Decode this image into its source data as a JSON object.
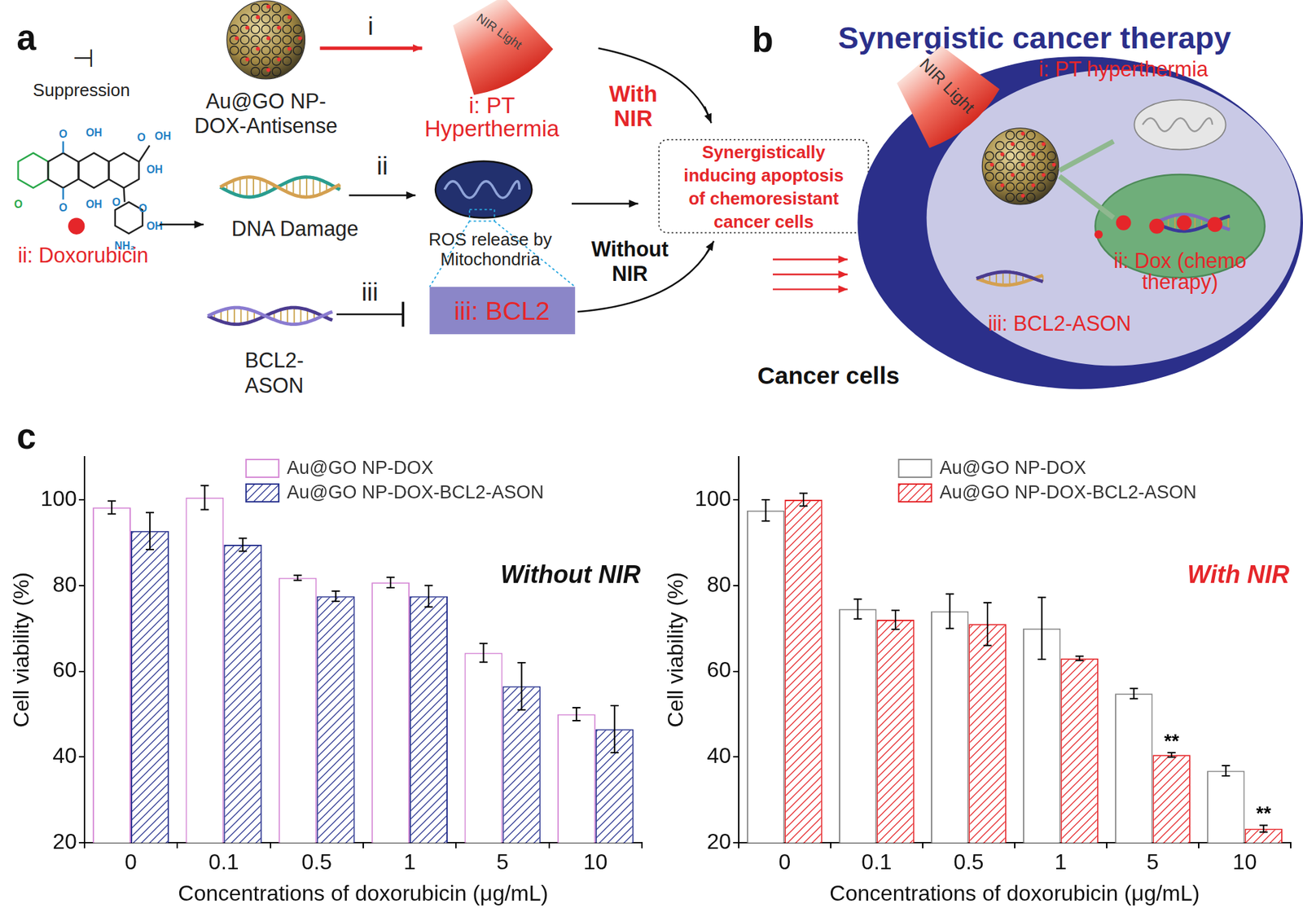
{
  "chart_data": [
    {
      "type": "bar",
      "title": "Without NIR",
      "x_label": "Concentrations of doxorubicin (μg/mL)",
      "y_label": "Cell viability (%)",
      "categories": [
        "0",
        "0.1",
        "0.5",
        "1",
        "5",
        "10"
      ],
      "series": [
        {
          "name": "Au@GO NP-DOX",
          "color": "#d68ad6",
          "values": [
            98.2,
            100.5,
            81.8,
            80.7,
            64.3,
            50.0
          ],
          "errors": [
            1.5,
            2.8,
            0.6,
            1.2,
            2.2,
            1.5
          ]
        },
        {
          "name": "Au@GO NP-DOX-BCL2-ASON",
          "color": "#2b3590",
          "values": [
            92.7,
            89.5,
            77.5,
            77.5,
            56.5,
            46.5
          ],
          "errors": [
            4.3,
            1.5,
            1.2,
            2.5,
            5.5,
            5.5
          ]
        }
      ],
      "ylim": [
        20,
        110
      ],
      "yticks": [
        20,
        40,
        60,
        80,
        100
      ],
      "grid": false,
      "legend": "upper left"
    },
    {
      "type": "bar",
      "title": "With NIR",
      "x_label": "Concentrations of doxorubicin (μg/mL)",
      "y_label": "Cell viability (%)",
      "categories": [
        "0",
        "0.1",
        "0.5",
        "1",
        "5",
        "10"
      ],
      "series": [
        {
          "name": "Au@GO NP-DOX",
          "color": "#8a8a8a",
          "values": [
            97.5,
            74.5,
            74.0,
            70.0,
            54.8,
            36.8
          ],
          "errors": [
            2.5,
            2.3,
            4.0,
            7.2,
            1.2,
            1.2
          ]
        },
        {
          "name": "Au@GO NP-DOX-BCL2-ASON",
          "color": "#e5262a",
          "values": [
            100.0,
            72.0,
            71.0,
            63.0,
            40.5,
            23.3
          ],
          "errors": [
            1.5,
            2.2,
            5.0,
            0.5,
            0.5,
            0.8
          ]
        }
      ],
      "annotations": [
        {
          "text": "**",
          "x": "5",
          "series": "Au@GO NP-DOX-BCL2-ASON"
        },
        {
          "text": "**",
          "x": "10",
          "series": "Au@GO NP-DOX-BCL2-ASON"
        }
      ],
      "ylim": [
        20,
        110
      ],
      "yticks": [
        20,
        40,
        60,
        80,
        100
      ],
      "grid": false,
      "legend": "upper left"
    }
  ],
  "panel_labels": [
    "a",
    "b",
    "c"
  ],
  "diagram_a": {
    "suppression_symbol": "⊣",
    "suppression": "Suppression",
    "nanoparticle": [
      "Au@GO NP-",
      "DOX-Antisense"
    ],
    "step_i": "i",
    "nir_light": "NIR Light",
    "pt": [
      "i: PT",
      "Hyperthermia"
    ],
    "with_nir": [
      "With",
      "NIR"
    ],
    "structure_labels": [
      "O",
      "O",
      "OH",
      "OH",
      "O",
      "O",
      "OH",
      "OH",
      "O",
      "O",
      "OH",
      "NH₂"
    ],
    "doxorubicin": "ii: Doxorubicin",
    "dna_damage": "DNA Damage",
    "step_ii": "ii",
    "ros": [
      "ROS release by",
      "Mitochondria"
    ],
    "bcl2": "iii: BCL2",
    "step_iii": "iii",
    "ason": [
      "BCL2-",
      "ASON"
    ],
    "without_nir": [
      "Without",
      "NIR"
    ],
    "outcome": [
      "Synergistically",
      "inducing apoptosis",
      "of chemoresistant",
      "cancer cells"
    ]
  },
  "diagram_b": {
    "title": "Synergistic cancer therapy",
    "nir_light": "NIR Light",
    "pt": "i: PT hyperthermia",
    "dox": [
      "ii: Dox (chemo",
      "therapy)"
    ],
    "ason": "iii: BCL2-ASON",
    "caption": "Cancer cells"
  }
}
